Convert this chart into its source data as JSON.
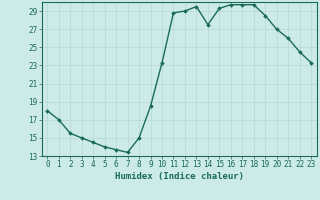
{
  "x": [
    0,
    1,
    2,
    3,
    4,
    5,
    6,
    7,
    8,
    9,
    10,
    11,
    12,
    13,
    14,
    15,
    16,
    17,
    18,
    19,
    20,
    21,
    22,
    23
  ],
  "y": [
    18.0,
    17.0,
    15.5,
    15.0,
    14.5,
    14.0,
    13.7,
    13.4,
    15.0,
    18.5,
    23.3,
    28.8,
    29.0,
    29.5,
    27.5,
    29.3,
    29.7,
    29.7,
    29.7,
    28.5,
    27.0,
    26.0,
    24.5,
    23.3
  ],
  "line_color": "#1a6b5a",
  "marker": "D",
  "markersize": 1.8,
  "linewidth": 1.0,
  "xlabel": "Humidex (Indice chaleur)",
  "xlim": [
    -0.5,
    23.5
  ],
  "ylim": [
    13,
    30
  ],
  "yticks": [
    13,
    15,
    17,
    19,
    21,
    23,
    25,
    27,
    29
  ],
  "xticks": [
    0,
    1,
    2,
    3,
    4,
    5,
    6,
    7,
    8,
    9,
    10,
    11,
    12,
    13,
    14,
    15,
    16,
    17,
    18,
    19,
    20,
    21,
    22,
    23
  ],
  "bg_color": "#cceae8",
  "grid_color": "#b8d8d5",
  "tick_color": "#1a6b5a",
  "xlabel_color": "#1a6b5a",
  "tick_fontsize": 5.5,
  "xlabel_fontsize": 6.5
}
